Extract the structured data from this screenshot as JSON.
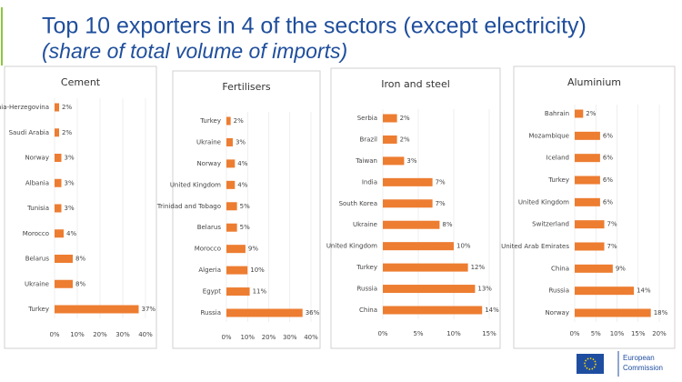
{
  "title": "Top 10 exporters in 4 of the sectors (except electricity)",
  "subtitle": "(share of total volume of imports)",
  "footer": {
    "logo": [
      "European",
      "Commission"
    ]
  },
  "chart_data": [
    {
      "type": "bar",
      "orientation": "horizontal",
      "title": "Cement",
      "color": "#ed7d31",
      "grid": true,
      "categories": [
        "Bosnia-Herzegovina",
        "Saudi Arabia",
        "Norway",
        "Albania",
        "Tunisia",
        "Morocco",
        "Belarus",
        "Ukraine",
        "Turkey"
      ],
      "values": [
        2,
        2,
        3,
        3,
        3,
        4,
        8,
        8,
        37
      ],
      "value_labels": [
        "2%",
        "2%",
        "3%",
        "3%",
        "3%",
        "4%",
        "8%",
        "8%",
        "37%"
      ],
      "xlim": [
        0,
        40
      ],
      "xticks": [
        {
          "value": 0,
          "label": "0%"
        },
        {
          "value": 10,
          "label": "10%"
        },
        {
          "value": 20,
          "label": "20%"
        },
        {
          "value": 30,
          "label": "30%"
        },
        {
          "value": 40,
          "label": "40%"
        }
      ]
    },
    {
      "type": "bar",
      "orientation": "horizontal",
      "title": "Fertilisers",
      "color": "#ed7d31",
      "grid": true,
      "categories": [
        "Turkey",
        "Ukraine",
        "Norway",
        "United Kingdom",
        "Trinidad and Tobago",
        "Belarus",
        "Morocco",
        "Algeria",
        "Egypt",
        "Russia"
      ],
      "values": [
        2,
        3,
        4,
        4,
        5,
        5,
        9,
        10,
        11,
        36
      ],
      "value_labels": [
        "2%",
        "3%",
        "4%",
        "4%",
        "5%",
        "5%",
        "9%",
        "10%",
        "11%",
        "36%"
      ],
      "xlim": [
        0,
        40
      ],
      "xticks": [
        {
          "value": 0,
          "label": "0%"
        },
        {
          "value": 10,
          "label": "10%"
        },
        {
          "value": 20,
          "label": "20%"
        },
        {
          "value": 30,
          "label": "30%"
        },
        {
          "value": 40,
          "label": "40%"
        }
      ]
    },
    {
      "type": "bar",
      "orientation": "horizontal",
      "title": "Iron and steel",
      "color": "#ed7d31",
      "grid": true,
      "categories": [
        "Serbia",
        "Brazil",
        "Taiwan",
        "India",
        "South Korea",
        "Ukraine",
        "United Kingdom",
        "Turkey",
        "Russia",
        "China"
      ],
      "values": [
        2,
        2,
        3,
        7,
        7,
        8,
        10,
        12,
        13,
        14
      ],
      "value_labels": [
        "2%",
        "2%",
        "3%",
        "7%",
        "7%",
        "8%",
        "10%",
        "12%",
        "13%",
        "14%"
      ],
      "xlim": [
        0,
        15
      ],
      "xticks": [
        {
          "value": 0,
          "label": "0%"
        },
        {
          "value": 5,
          "label": "5%"
        },
        {
          "value": 10,
          "label": "10%"
        },
        {
          "value": 15,
          "label": "15%"
        }
      ]
    },
    {
      "type": "bar",
      "orientation": "horizontal",
      "title": "Aluminium",
      "color": "#ed7d31",
      "grid": true,
      "categories": [
        "Bahrain",
        "Mozambique",
        "Iceland",
        "Turkey",
        "United Kingdom",
        "Switzerland",
        "United Arab Emirates",
        "China",
        "Russia",
        "Norway"
      ],
      "values": [
        2,
        6,
        6,
        6,
        6,
        7,
        7,
        9,
        14,
        18
      ],
      "value_labels": [
        "2%",
        "6%",
        "6%",
        "6%",
        "6%",
        "7%",
        "7%",
        "9%",
        "14%",
        "18%"
      ],
      "xlim": [
        0,
        20
      ],
      "xticks": [
        {
          "value": 0,
          "label": "0%"
        },
        {
          "value": 5,
          "label": "5%"
        },
        {
          "value": 10,
          "label": "10%"
        },
        {
          "value": 15,
          "label": "15%"
        },
        {
          "value": 20,
          "label": "20%"
        }
      ]
    }
  ]
}
